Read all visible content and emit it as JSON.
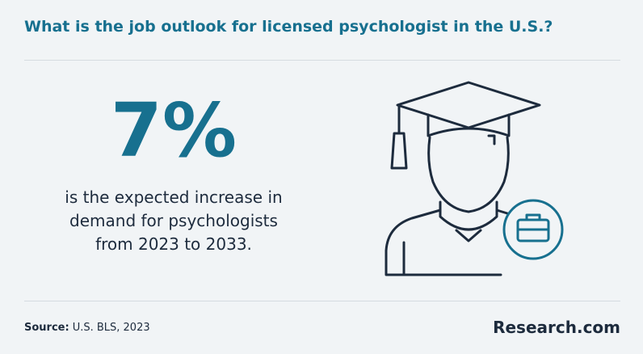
{
  "header": {
    "title": "What is the job outlook for licensed psychologist in the U.S.?"
  },
  "stat": {
    "value": "7%",
    "description": "is the expected increase in demand for psychologists from 2023 to 2033."
  },
  "footer": {
    "source_label": "Source:",
    "source_text": "U.S. BLS, 2023",
    "logo": "Research.com"
  }
}
